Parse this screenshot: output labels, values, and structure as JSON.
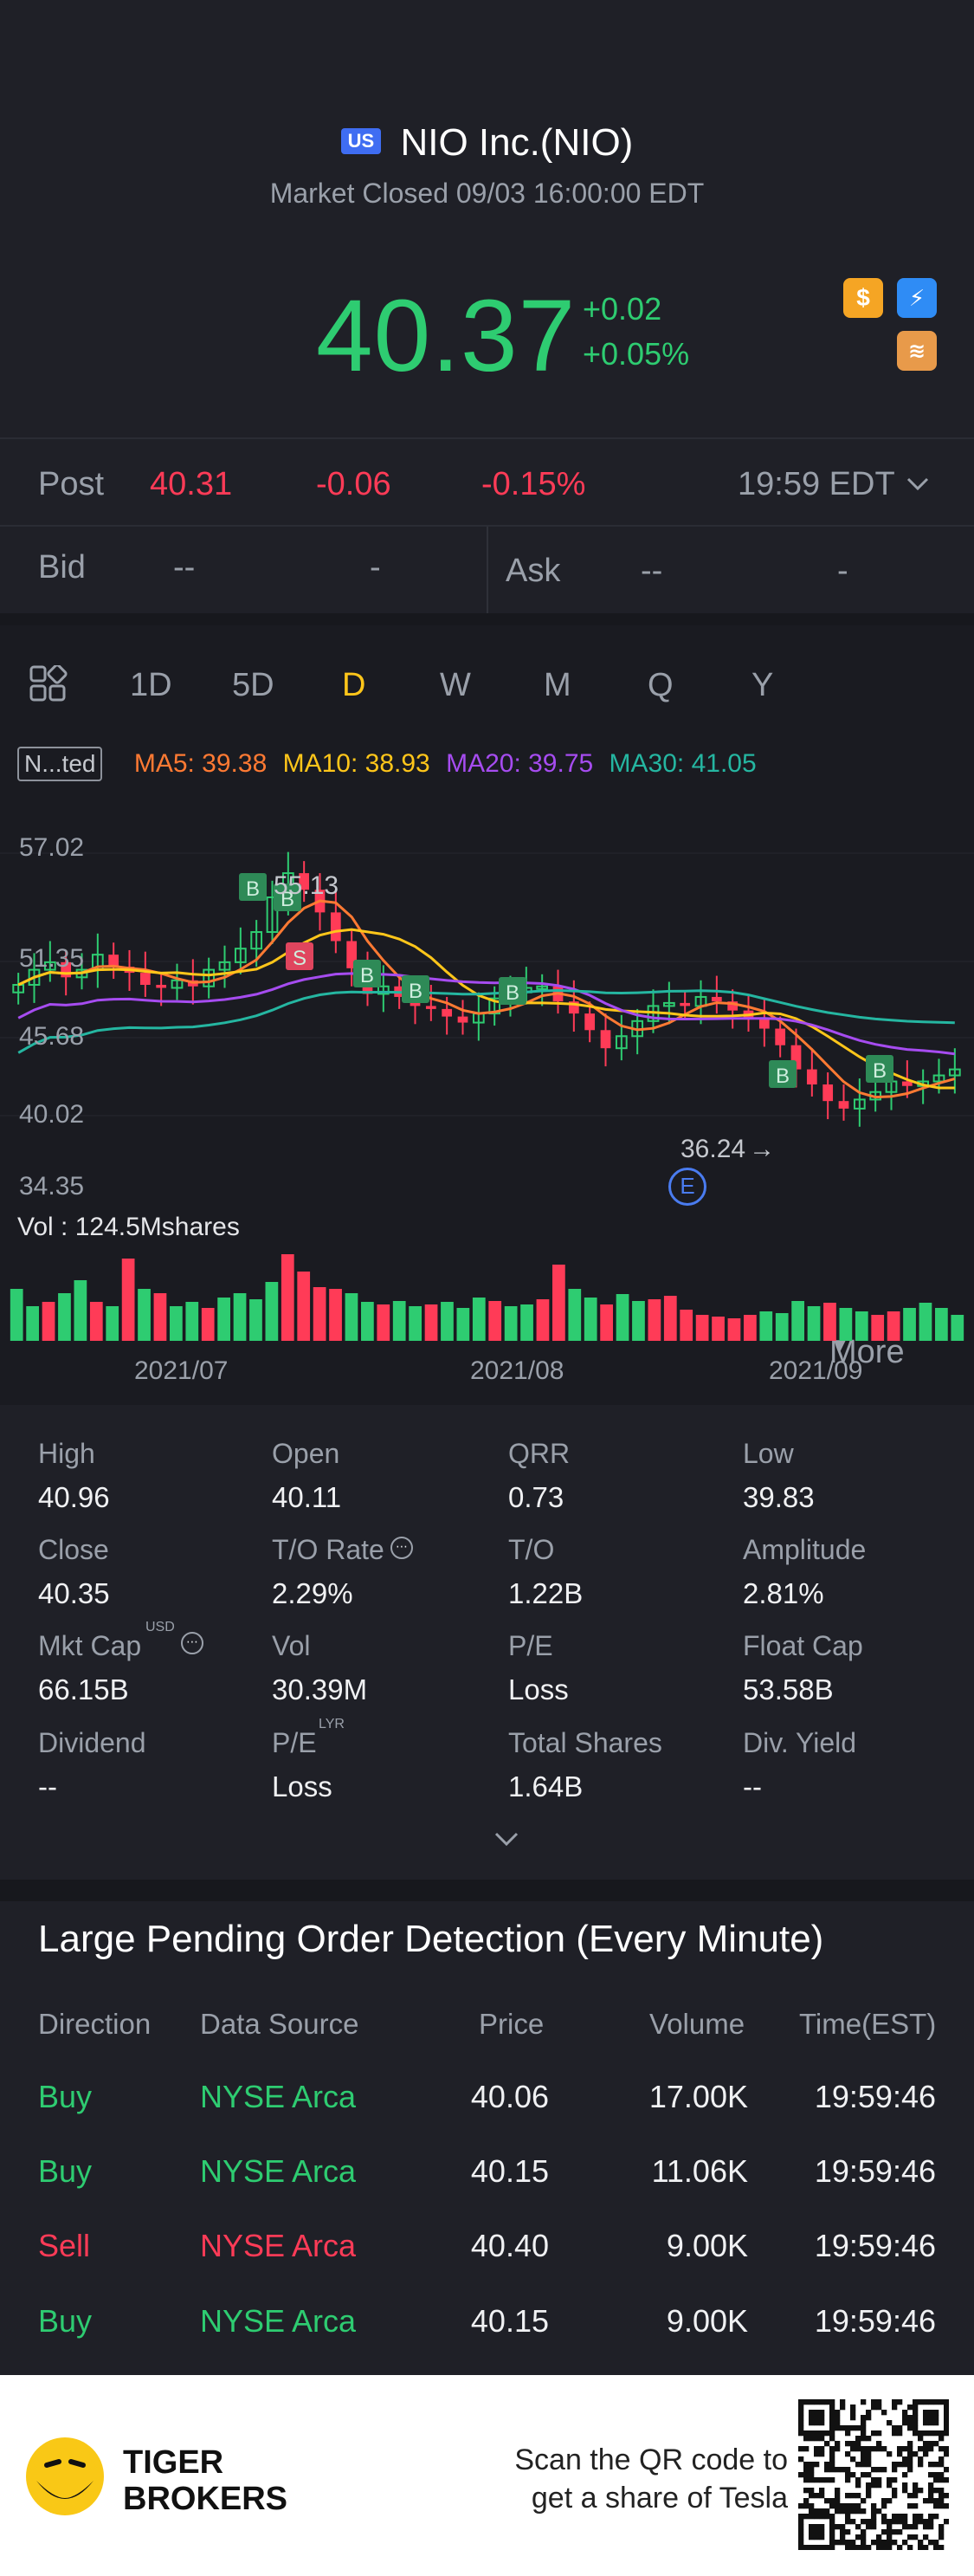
{
  "header": {
    "market_badge": "US",
    "title": "NIO Inc.(NIO)",
    "status": "Market Closed 09/03 16:00:00 EDT",
    "price": "40.37",
    "change": "+0.02",
    "change_pct": "+0.05%",
    "icons": [
      "dollar-icon",
      "flash-icon",
      "layers-icon"
    ]
  },
  "post": {
    "label": "Post",
    "price": "40.31",
    "change": "-0.06",
    "change_pct": "-0.15%",
    "time": "19:59 EDT"
  },
  "bid": {
    "label": "Bid",
    "value": "--",
    "size": "-"
  },
  "ask": {
    "label": "Ask",
    "value": "--",
    "size": "-"
  },
  "tabs": [
    "1D",
    "5D",
    "D",
    "W",
    "M",
    "Q",
    "Y",
    "More"
  ],
  "active_tab": "D",
  "indicators": {
    "tag": "N...ted",
    "ma5": "MA5: 39.38",
    "ma10": "MA10: 38.93",
    "ma20": "MA20: 39.75",
    "ma30": "MA30: 41.05"
  },
  "chart_data": {
    "type": "candlestick",
    "y_ticks": [
      "57.02",
      "51.35",
      "45.68",
      "40.02",
      "34.35"
    ],
    "x_ticks": [
      "2021/07",
      "2021/08",
      "2021/09"
    ],
    "high_label": "55.13",
    "low_label": "36.24",
    "markers": [
      "B",
      "B",
      "S",
      "B",
      "B",
      "B",
      "B",
      "B"
    ],
    "event_marker": "E",
    "volume_label": "Vol  : 124.5Mshares",
    "colors": {
      "up": "#2ecc71",
      "down": "#ff3b57",
      "ma5": "#ff7a33",
      "ma10": "#ffc61a",
      "ma20": "#a64cf0",
      "ma30": "#25b6a1"
    }
  },
  "stats": [
    {
      "label": "High",
      "value": "40.96"
    },
    {
      "label": "Open",
      "value": "40.11"
    },
    {
      "label": "QRR",
      "value": "0.73"
    },
    {
      "label": "Low",
      "value": "39.83"
    },
    {
      "label": "Close",
      "value": "40.35"
    },
    {
      "label": "T/O Rate",
      "value": "2.29%"
    },
    {
      "label": "T/O",
      "value": "1.22B"
    },
    {
      "label": "Amplitude",
      "value": "2.81%"
    },
    {
      "label": "Mkt Cap",
      "value": "66.15B",
      "sup": "USD"
    },
    {
      "label": "Vol",
      "value": "30.39M"
    },
    {
      "label": "P/E",
      "value": "Loss"
    },
    {
      "label": "Float Cap",
      "value": "53.58B"
    },
    {
      "label": "Dividend",
      "value": "--"
    },
    {
      "label": "P/E",
      "value": "Loss",
      "sup": "LYR"
    },
    {
      "label": "Total Shares",
      "value": "1.64B"
    },
    {
      "label": "Div. Yield",
      "value": "--"
    }
  ],
  "orders": {
    "title": "Large Pending Order Detection (Every Minute)",
    "headers": [
      "Direction",
      "Data Source",
      "Price",
      "Volume",
      "Time(EST)"
    ],
    "rows": [
      {
        "direction": "Buy",
        "source": "NYSE Arca",
        "price": "40.06",
        "volume": "17.00K",
        "time": "19:59:46"
      },
      {
        "direction": "Buy",
        "source": "NYSE Arca",
        "price": "40.15",
        "volume": "11.06K",
        "time": "19:59:46"
      },
      {
        "direction": "Sell",
        "source": "NYSE Arca",
        "price": "40.40",
        "volume": "9.00K",
        "time": "19:59:46"
      },
      {
        "direction": "Buy",
        "source": "NYSE Arca",
        "price": "40.15",
        "volume": "9.00K",
        "time": "19:59:46"
      }
    ]
  },
  "footer": {
    "brand_line1": "TIGER",
    "brand_line2": "BROKERS",
    "promo_line1": "Scan the QR code to",
    "promo_line2": "get a share of Tesla"
  }
}
